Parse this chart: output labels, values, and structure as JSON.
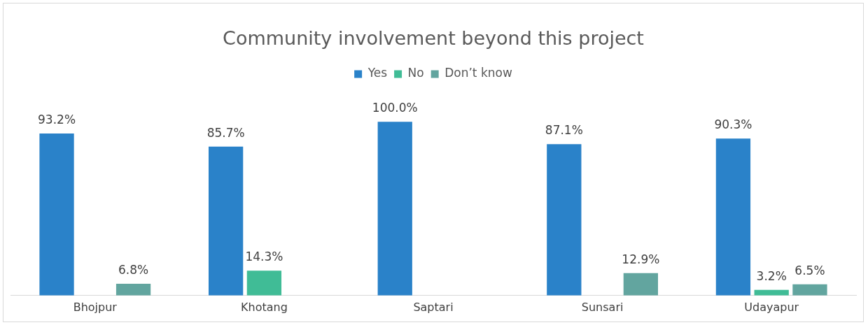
{
  "chart_data": {
    "type": "bar",
    "title": "Community involvement beyond this project",
    "categories": [
      "Bhojpur",
      "Khotang",
      "Saptari",
      "Sunsari",
      "Udayapur"
    ],
    "series": [
      {
        "name": "Yes",
        "color": "#2a82c9",
        "values": [
          93.2,
          85.7,
          100.0,
          87.1,
          90.3
        ],
        "value_labels": [
          "93.2%",
          "85.7%",
          "100.0%",
          "87.1%",
          "90.3%"
        ]
      },
      {
        "name": "No",
        "color": "#40bc96",
        "values": [
          null,
          14.3,
          null,
          null,
          3.2
        ],
        "value_labels": [
          null,
          "14.3%",
          null,
          null,
          "3.2%"
        ]
      },
      {
        "name": "Don’t know",
        "color": "#62a59f",
        "values": [
          6.8,
          null,
          null,
          12.9,
          6.5
        ],
        "value_labels": [
          "6.8%",
          null,
          null,
          "12.9%",
          "6.5%"
        ]
      }
    ],
    "legend": "top"
  }
}
